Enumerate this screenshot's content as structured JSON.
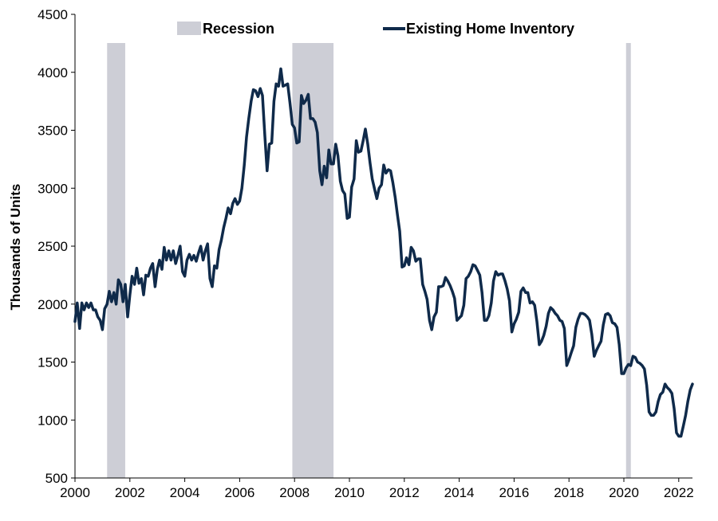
{
  "chart_data": {
    "type": "line",
    "title": "",
    "xlabel": "",
    "ylabel": "Thousands of Units",
    "xlim": [
      2000,
      2022.5
    ],
    "ylim": [
      500,
      4500
    ],
    "y_ticks": [
      500,
      1000,
      1500,
      2000,
      2500,
      3000,
      3500,
      4000,
      4500
    ],
    "x_ticks": [
      "2000",
      "2002",
      "2004",
      "2006",
      "2008",
      "2010",
      "2012",
      "2014",
      "2016",
      "2018",
      "2020",
      "2022"
    ],
    "grid": false,
    "legend_position": "top",
    "legend": [
      {
        "label": "Recession",
        "kind": "band",
        "color": "#cdced6"
      },
      {
        "label": "Existing Home Inventory",
        "kind": "line",
        "color": "#0f2a4a"
      }
    ],
    "recessions": [
      {
        "start": 2001.17,
        "end": 2001.83
      },
      {
        "start": 2007.92,
        "end": 2009.42
      },
      {
        "start": 2020.08,
        "end": 2020.25
      }
    ],
    "series": [
      {
        "name": "Existing Home Inventory",
        "color": "#0f2a4a",
        "points": [
          [
            2000.0,
            1850
          ],
          [
            2000.08,
            2010
          ],
          [
            2000.17,
            1790
          ],
          [
            2000.25,
            2010
          ],
          [
            2000.33,
            1950
          ],
          [
            2000.42,
            2010
          ],
          [
            2000.5,
            1970
          ],
          [
            2000.58,
            2010
          ],
          [
            2000.67,
            1950
          ],
          [
            2000.75,
            1950
          ],
          [
            2000.83,
            1890
          ],
          [
            2000.92,
            1860
          ],
          [
            2001.0,
            1780
          ],
          [
            2001.08,
            1960
          ],
          [
            2001.17,
            2000
          ],
          [
            2001.25,
            2110
          ],
          [
            2001.33,
            2020
          ],
          [
            2001.42,
            2100
          ],
          [
            2001.5,
            2000
          ],
          [
            2001.58,
            2210
          ],
          [
            2001.67,
            2170
          ],
          [
            2001.75,
            2020
          ],
          [
            2001.83,
            2170
          ],
          [
            2001.92,
            1890
          ],
          [
            2002.0,
            2080
          ],
          [
            2002.08,
            2240
          ],
          [
            2002.17,
            2170
          ],
          [
            2002.25,
            2310
          ],
          [
            2002.33,
            2180
          ],
          [
            2002.42,
            2220
          ],
          [
            2002.5,
            2080
          ],
          [
            2002.58,
            2250
          ],
          [
            2002.67,
            2240
          ],
          [
            2002.75,
            2310
          ],
          [
            2002.83,
            2350
          ],
          [
            2002.92,
            2150
          ],
          [
            2003.0,
            2300
          ],
          [
            2003.08,
            2380
          ],
          [
            2003.17,
            2300
          ],
          [
            2003.25,
            2490
          ],
          [
            2003.33,
            2380
          ],
          [
            2003.42,
            2460
          ],
          [
            2003.5,
            2380
          ],
          [
            2003.58,
            2460
          ],
          [
            2003.67,
            2350
          ],
          [
            2003.75,
            2420
          ],
          [
            2003.83,
            2500
          ],
          [
            2003.92,
            2280
          ],
          [
            2004.0,
            2240
          ],
          [
            2004.08,
            2380
          ],
          [
            2004.17,
            2430
          ],
          [
            2004.25,
            2380
          ],
          [
            2004.33,
            2420
          ],
          [
            2004.42,
            2370
          ],
          [
            2004.5,
            2440
          ],
          [
            2004.58,
            2500
          ],
          [
            2004.67,
            2380
          ],
          [
            2004.75,
            2460
          ],
          [
            2004.83,
            2520
          ],
          [
            2004.92,
            2220
          ],
          [
            2005.0,
            2150
          ],
          [
            2005.08,
            2330
          ],
          [
            2005.17,
            2310
          ],
          [
            2005.25,
            2470
          ],
          [
            2005.33,
            2550
          ],
          [
            2005.42,
            2660
          ],
          [
            2005.5,
            2740
          ],
          [
            2005.58,
            2830
          ],
          [
            2005.67,
            2780
          ],
          [
            2005.75,
            2870
          ],
          [
            2005.83,
            2910
          ],
          [
            2005.92,
            2860
          ],
          [
            2006.0,
            2890
          ],
          [
            2006.08,
            3000
          ],
          [
            2006.17,
            3200
          ],
          [
            2006.25,
            3440
          ],
          [
            2006.33,
            3600
          ],
          [
            2006.42,
            3750
          ],
          [
            2006.5,
            3850
          ],
          [
            2006.58,
            3840
          ],
          [
            2006.67,
            3790
          ],
          [
            2006.75,
            3860
          ],
          [
            2006.83,
            3800
          ],
          [
            2006.92,
            3450
          ],
          [
            2007.0,
            3150
          ],
          [
            2007.08,
            3380
          ],
          [
            2007.17,
            3390
          ],
          [
            2007.25,
            3750
          ],
          [
            2007.33,
            3900
          ],
          [
            2007.42,
            3880
          ],
          [
            2007.5,
            4030
          ],
          [
            2007.58,
            3880
          ],
          [
            2007.67,
            3890
          ],
          [
            2007.75,
            3900
          ],
          [
            2007.83,
            3740
          ],
          [
            2007.92,
            3550
          ],
          [
            2008.0,
            3520
          ],
          [
            2008.08,
            3390
          ],
          [
            2008.17,
            3400
          ],
          [
            2008.25,
            3800
          ],
          [
            2008.33,
            3730
          ],
          [
            2008.42,
            3760
          ],
          [
            2008.5,
            3810
          ],
          [
            2008.58,
            3600
          ],
          [
            2008.67,
            3600
          ],
          [
            2008.75,
            3570
          ],
          [
            2008.83,
            3480
          ],
          [
            2008.92,
            3150
          ],
          [
            2009.0,
            3030
          ],
          [
            2009.08,
            3190
          ],
          [
            2009.17,
            3090
          ],
          [
            2009.25,
            3330
          ],
          [
            2009.33,
            3210
          ],
          [
            2009.42,
            3210
          ],
          [
            2009.5,
            3380
          ],
          [
            2009.58,
            3280
          ],
          [
            2009.67,
            3060
          ],
          [
            2009.75,
            2980
          ],
          [
            2009.83,
            2950
          ],
          [
            2009.92,
            2740
          ],
          [
            2010.0,
            2750
          ],
          [
            2010.08,
            3010
          ],
          [
            2010.17,
            3080
          ],
          [
            2010.25,
            3410
          ],
          [
            2010.33,
            3310
          ],
          [
            2010.42,
            3320
          ],
          [
            2010.5,
            3410
          ],
          [
            2010.58,
            3510
          ],
          [
            2010.67,
            3380
          ],
          [
            2010.75,
            3220
          ],
          [
            2010.83,
            3080
          ],
          [
            2010.92,
            2990
          ],
          [
            2011.0,
            2910
          ],
          [
            2011.08,
            3000
          ],
          [
            2011.17,
            3030
          ],
          [
            2011.25,
            3200
          ],
          [
            2011.33,
            3130
          ],
          [
            2011.42,
            3160
          ],
          [
            2011.5,
            3150
          ],
          [
            2011.58,
            3050
          ],
          [
            2011.67,
            2920
          ],
          [
            2011.75,
            2770
          ],
          [
            2011.83,
            2630
          ],
          [
            2011.92,
            2320
          ],
          [
            2012.0,
            2330
          ],
          [
            2012.08,
            2400
          ],
          [
            2012.17,
            2340
          ],
          [
            2012.25,
            2490
          ],
          [
            2012.33,
            2460
          ],
          [
            2012.42,
            2370
          ],
          [
            2012.5,
            2390
          ],
          [
            2012.58,
            2390
          ],
          [
            2012.67,
            2170
          ],
          [
            2012.75,
            2110
          ],
          [
            2012.83,
            2040
          ],
          [
            2012.92,
            1860
          ],
          [
            2013.0,
            1780
          ],
          [
            2013.08,
            1890
          ],
          [
            2013.17,
            1930
          ],
          [
            2013.25,
            2150
          ],
          [
            2013.33,
            2150
          ],
          [
            2013.42,
            2160
          ],
          [
            2013.5,
            2230
          ],
          [
            2013.58,
            2200
          ],
          [
            2013.67,
            2160
          ],
          [
            2013.75,
            2110
          ],
          [
            2013.83,
            2050
          ],
          [
            2013.92,
            1860
          ],
          [
            2014.0,
            1880
          ],
          [
            2014.08,
            1900
          ],
          [
            2014.17,
            1990
          ],
          [
            2014.25,
            2220
          ],
          [
            2014.33,
            2240
          ],
          [
            2014.42,
            2280
          ],
          [
            2014.5,
            2340
          ],
          [
            2014.58,
            2330
          ],
          [
            2014.67,
            2290
          ],
          [
            2014.75,
            2250
          ],
          [
            2014.83,
            2100
          ],
          [
            2014.92,
            1860
          ],
          [
            2015.0,
            1860
          ],
          [
            2015.08,
            1900
          ],
          [
            2015.17,
            2010
          ],
          [
            2015.25,
            2200
          ],
          [
            2015.33,
            2280
          ],
          [
            2015.42,
            2250
          ],
          [
            2015.5,
            2260
          ],
          [
            2015.58,
            2260
          ],
          [
            2015.67,
            2200
          ],
          [
            2015.75,
            2130
          ],
          [
            2015.83,
            2030
          ],
          [
            2015.92,
            1760
          ],
          [
            2016.0,
            1830
          ],
          [
            2016.08,
            1870
          ],
          [
            2016.17,
            1930
          ],
          [
            2016.25,
            2110
          ],
          [
            2016.33,
            2140
          ],
          [
            2016.42,
            2100
          ],
          [
            2016.5,
            2100
          ],
          [
            2016.58,
            2010
          ],
          [
            2016.67,
            2020
          ],
          [
            2016.75,
            1990
          ],
          [
            2016.83,
            1850
          ],
          [
            2016.92,
            1650
          ],
          [
            2017.0,
            1680
          ],
          [
            2017.08,
            1730
          ],
          [
            2017.17,
            1810
          ],
          [
            2017.25,
            1920
          ],
          [
            2017.33,
            1970
          ],
          [
            2017.42,
            1950
          ],
          [
            2017.5,
            1920
          ],
          [
            2017.58,
            1900
          ],
          [
            2017.67,
            1860
          ],
          [
            2017.75,
            1850
          ],
          [
            2017.83,
            1790
          ],
          [
            2017.92,
            1470
          ],
          [
            2018.0,
            1520
          ],
          [
            2018.08,
            1580
          ],
          [
            2018.17,
            1640
          ],
          [
            2018.25,
            1800
          ],
          [
            2018.33,
            1870
          ],
          [
            2018.42,
            1920
          ],
          [
            2018.5,
            1920
          ],
          [
            2018.58,
            1910
          ],
          [
            2018.67,
            1890
          ],
          [
            2018.75,
            1860
          ],
          [
            2018.83,
            1740
          ],
          [
            2018.92,
            1550
          ],
          [
            2019.0,
            1600
          ],
          [
            2019.08,
            1640
          ],
          [
            2019.17,
            1680
          ],
          [
            2019.25,
            1820
          ],
          [
            2019.33,
            1910
          ],
          [
            2019.42,
            1920
          ],
          [
            2019.5,
            1900
          ],
          [
            2019.58,
            1840
          ],
          [
            2019.67,
            1830
          ],
          [
            2019.75,
            1800
          ],
          [
            2019.83,
            1650
          ],
          [
            2019.92,
            1400
          ],
          [
            2020.0,
            1400
          ],
          [
            2020.08,
            1450
          ],
          [
            2020.17,
            1480
          ],
          [
            2020.25,
            1470
          ],
          [
            2020.33,
            1550
          ],
          [
            2020.42,
            1540
          ],
          [
            2020.5,
            1500
          ],
          [
            2020.58,
            1490
          ],
          [
            2020.67,
            1470
          ],
          [
            2020.75,
            1440
          ],
          [
            2020.83,
            1300
          ],
          [
            2020.92,
            1070
          ],
          [
            2021.0,
            1040
          ],
          [
            2021.08,
            1040
          ],
          [
            2021.17,
            1070
          ],
          [
            2021.25,
            1160
          ],
          [
            2021.33,
            1220
          ],
          [
            2021.42,
            1240
          ],
          [
            2021.5,
            1310
          ],
          [
            2021.58,
            1280
          ],
          [
            2021.67,
            1260
          ],
          [
            2021.75,
            1230
          ],
          [
            2021.83,
            1100
          ],
          [
            2021.92,
            890
          ],
          [
            2022.0,
            860
          ],
          [
            2022.08,
            860
          ],
          [
            2022.17,
            950
          ],
          [
            2022.25,
            1040
          ],
          [
            2022.33,
            1160
          ],
          [
            2022.42,
            1260
          ],
          [
            2022.5,
            1310
          ]
        ]
      }
    ]
  }
}
